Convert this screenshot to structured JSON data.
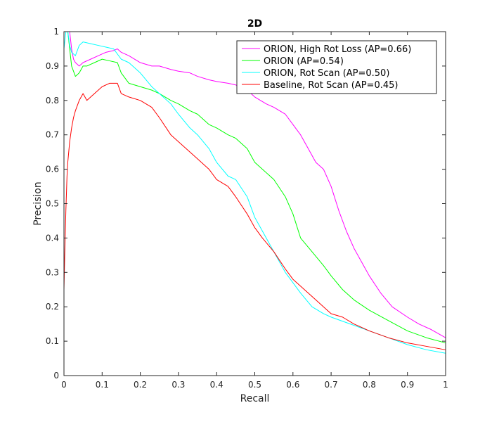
{
  "chart_data": {
    "type": "line",
    "title": "2D",
    "xlabel": "Recall",
    "ylabel": "Precision",
    "xlim": [
      0,
      1
    ],
    "ylim": [
      0,
      1
    ],
    "xticks": [
      0,
      0.1,
      0.2,
      0.3,
      0.4,
      0.5,
      0.6,
      0.7,
      0.8,
      0.9,
      1
    ],
    "yticks": [
      0,
      0.1,
      0.2,
      0.3,
      0.4,
      0.5,
      0.6,
      0.7,
      0.8,
      0.9,
      1
    ],
    "xtick_labels": [
      "0",
      "0.1",
      "0.2",
      "0.3",
      "0.4",
      "0.5",
      "0.6",
      "0.7",
      "0.8",
      "0.9",
      "1"
    ],
    "ytick_labels": [
      "0",
      "0.1",
      "0.2",
      "0.3",
      "0.4",
      "0.5",
      "0.6",
      "0.7",
      "0.8",
      "0.9",
      "1"
    ],
    "grid": false,
    "legend_position": "top-right",
    "series": [
      {
        "name": "ORION, High Rot Loss (AP=0.66)",
        "color": "#ff00ff",
        "x": [
          0.0,
          0.005,
          0.01,
          0.015,
          0.02,
          0.025,
          0.03,
          0.04,
          0.05,
          0.07,
          0.09,
          0.11,
          0.13,
          0.14,
          0.15,
          0.17,
          0.2,
          0.23,
          0.25,
          0.28,
          0.3,
          0.33,
          0.35,
          0.38,
          0.4,
          0.43,
          0.45,
          0.48,
          0.5,
          0.53,
          0.55,
          0.58,
          0.6,
          0.62,
          0.64,
          0.66,
          0.68,
          0.7,
          0.72,
          0.74,
          0.76,
          0.78,
          0.8,
          0.83,
          0.86,
          0.9,
          0.93,
          0.96,
          1.0
        ],
        "y": [
          1.0,
          1.0,
          1.0,
          1.0,
          0.95,
          0.92,
          0.91,
          0.9,
          0.91,
          0.92,
          0.93,
          0.94,
          0.945,
          0.95,
          0.94,
          0.93,
          0.91,
          0.9,
          0.9,
          0.89,
          0.885,
          0.88,
          0.87,
          0.86,
          0.855,
          0.85,
          0.845,
          0.83,
          0.81,
          0.79,
          0.78,
          0.76,
          0.73,
          0.7,
          0.66,
          0.62,
          0.6,
          0.55,
          0.48,
          0.42,
          0.37,
          0.33,
          0.29,
          0.24,
          0.2,
          0.17,
          0.15,
          0.135,
          0.11
        ]
      },
      {
        "name": "ORION (AP=0.54)",
        "color": "#00ff00",
        "x": [
          0.0,
          0.005,
          0.01,
          0.02,
          0.03,
          0.04,
          0.05,
          0.06,
          0.07,
          0.08,
          0.1,
          0.12,
          0.14,
          0.15,
          0.17,
          0.2,
          0.23,
          0.25,
          0.28,
          0.3,
          0.33,
          0.35,
          0.38,
          0.4,
          0.43,
          0.45,
          0.48,
          0.5,
          0.52,
          0.55,
          0.58,
          0.6,
          0.62,
          0.65,
          0.68,
          0.7,
          0.73,
          0.76,
          0.8,
          0.85,
          0.9,
          0.95,
          1.0
        ],
        "y": [
          1.0,
          1.0,
          1.0,
          0.9,
          0.87,
          0.88,
          0.9,
          0.9,
          0.905,
          0.91,
          0.92,
          0.915,
          0.91,
          0.88,
          0.85,
          0.84,
          0.83,
          0.82,
          0.8,
          0.79,
          0.77,
          0.76,
          0.73,
          0.72,
          0.7,
          0.69,
          0.66,
          0.62,
          0.6,
          0.57,
          0.52,
          0.47,
          0.4,
          0.36,
          0.32,
          0.29,
          0.25,
          0.22,
          0.19,
          0.16,
          0.13,
          0.11,
          0.095
        ]
      },
      {
        "name": "ORION, Rot Scan (AP=0.50)",
        "color": "#00ffff",
        "x": [
          0.0,
          0.005,
          0.01,
          0.015,
          0.02,
          0.03,
          0.04,
          0.05,
          0.07,
          0.09,
          0.11,
          0.13,
          0.15,
          0.17,
          0.2,
          0.23,
          0.25,
          0.28,
          0.3,
          0.33,
          0.35,
          0.38,
          0.4,
          0.43,
          0.45,
          0.48,
          0.5,
          0.52,
          0.55,
          0.58,
          0.6,
          0.62,
          0.65,
          0.68,
          0.7,
          0.75,
          0.8,
          0.85,
          0.9,
          0.95,
          1.0
        ],
        "y": [
          0.95,
          1.0,
          1.0,
          0.96,
          0.94,
          0.93,
          0.96,
          0.97,
          0.965,
          0.96,
          0.955,
          0.95,
          0.92,
          0.91,
          0.88,
          0.84,
          0.82,
          0.79,
          0.76,
          0.72,
          0.7,
          0.66,
          0.62,
          0.58,
          0.57,
          0.52,
          0.46,
          0.42,
          0.36,
          0.3,
          0.27,
          0.24,
          0.2,
          0.18,
          0.17,
          0.15,
          0.13,
          0.11,
          0.09,
          0.075,
          0.065
        ]
      },
      {
        "name": "Baseline, Rot Scan (AP=0.45)",
        "color": "#ff0000",
        "x": [
          0.0,
          0.002,
          0.005,
          0.008,
          0.01,
          0.015,
          0.02,
          0.025,
          0.03,
          0.04,
          0.05,
          0.06,
          0.08,
          0.1,
          0.12,
          0.14,
          0.15,
          0.17,
          0.2,
          0.23,
          0.25,
          0.28,
          0.3,
          0.33,
          0.35,
          0.38,
          0.4,
          0.43,
          0.45,
          0.48,
          0.5,
          0.52,
          0.55,
          0.58,
          0.6,
          0.63,
          0.65,
          0.68,
          0.7,
          0.73,
          0.76,
          0.8,
          0.85,
          0.9,
          0.95,
          1.0
        ],
        "y": [
          0.25,
          0.35,
          0.48,
          0.58,
          0.62,
          0.68,
          0.72,
          0.75,
          0.77,
          0.8,
          0.82,
          0.8,
          0.82,
          0.84,
          0.85,
          0.85,
          0.82,
          0.81,
          0.8,
          0.78,
          0.75,
          0.7,
          0.68,
          0.65,
          0.63,
          0.6,
          0.57,
          0.55,
          0.52,
          0.47,
          0.43,
          0.4,
          0.36,
          0.31,
          0.28,
          0.25,
          0.23,
          0.2,
          0.18,
          0.17,
          0.15,
          0.13,
          0.11,
          0.095,
          0.085,
          0.075
        ]
      }
    ]
  }
}
